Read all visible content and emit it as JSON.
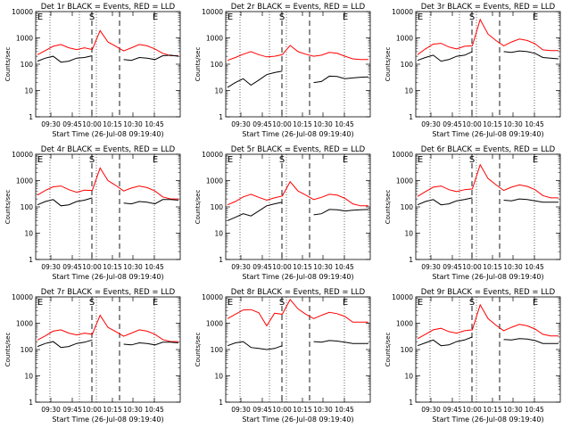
{
  "chart_data": [
    {
      "type": "line",
      "title": "Det 1r BLACK = Events, RED = LLD",
      "ylabel": "Counts/sec",
      "xlabel": "Start Time (26-Jul-08 09:19:40)",
      "x_ticks": [
        "09:30",
        "09:45",
        "10:00",
        "10:15",
        "10:30",
        "10:45"
      ],
      "y_ticks": [
        "1",
        "10",
        "100",
        "1000",
        "10000"
      ],
      "y_scale": "log",
      "ylim": [
        1,
        10000
      ],
      "grid": false,
      "markers": [
        "E",
        "S",
        "E"
      ],
      "series": [
        {
          "color": "#ff0000",
          "values": [
            230,
            330,
            480,
            560,
            420,
            360,
            420,
            360,
            1900,
            700,
            480,
            320,
            420,
            560,
            500,
            380,
            260,
            210,
            210
          ]
        },
        {
          "color": "#000000",
          "values": [
            130,
            170,
            200,
            120,
            130,
            170,
            180,
            210,
            null,
            null,
            null,
            150,
            140,
            180,
            170,
            150,
            210,
            220,
            200
          ]
        }
      ]
    },
    {
      "type": "line",
      "title": "Det 2r BLACK = Events, RED = LLD",
      "ylabel": "Counts/sec",
      "xlabel": "Start Time (26-Jul-08 09:19:40)",
      "x_ticks": [
        "09:30",
        "09:45",
        "10:00",
        "10:15",
        "10:30",
        "10:45"
      ],
      "y_ticks": [
        "1",
        "10",
        "100",
        "1000",
        "10000"
      ],
      "y_scale": "log",
      "ylim": [
        1,
        10000
      ],
      "grid": false,
      "markers": [
        "E",
        "S",
        "E"
      ],
      "series": [
        {
          "color": "#ff0000",
          "values": [
            140,
            180,
            240,
            300,
            230,
            190,
            200,
            230,
            520,
            300,
            240,
            200,
            220,
            280,
            260,
            200,
            160,
            150,
            150
          ]
        },
        {
          "color": "#000000",
          "values": [
            13,
            20,
            28,
            16,
            25,
            40,
            48,
            55,
            null,
            null,
            null,
            20,
            22,
            35,
            34,
            28,
            30,
            32,
            33
          ]
        }
      ]
    },
    {
      "type": "line",
      "title": "Det 3r BLACK = Events, RED = LLD",
      "ylabel": "Counts/sec",
      "xlabel": "Start Time (26-Jul-08 09:19:40)",
      "x_ticks": [
        "09:30",
        "09:45",
        "10:00",
        "10:15",
        "10:30",
        "10:45"
      ],
      "y_ticks": [
        "1",
        "10",
        "100",
        "1000",
        "10000"
      ],
      "y_scale": "log",
      "ylim": [
        1,
        10000
      ],
      "grid": false,
      "markers": [
        "E",
        "S",
        "E"
      ],
      "series": [
        {
          "color": "#ff0000",
          "values": [
            230,
            380,
            580,
            620,
            450,
            380,
            480,
            500,
            5000,
            1400,
            800,
            500,
            700,
            900,
            800,
            600,
            350,
            330,
            330
          ]
        },
        {
          "color": "#000000",
          "values": [
            140,
            180,
            220,
            130,
            150,
            200,
            220,
            300,
            null,
            null,
            null,
            300,
            280,
            320,
            300,
            260,
            180,
            170,
            160
          ]
        }
      ]
    },
    {
      "type": "line",
      "title": "Det 4r BLACK = Events, RED = LLD",
      "ylabel": "Counts/sec",
      "xlabel": "Start Time (26-Jul-08 09:19:40)",
      "x_ticks": [
        "09:30",
        "09:45",
        "10:00",
        "10:15",
        "10:30",
        "10:45"
      ],
      "y_ticks": [
        "1",
        "10",
        "100",
        "1000",
        "10000"
      ],
      "y_scale": "log",
      "ylim": [
        1,
        10000
      ],
      "grid": false,
      "markers": [
        "E",
        "S",
        "E"
      ],
      "series": [
        {
          "color": "#ff0000",
          "values": [
            280,
            420,
            580,
            620,
            450,
            360,
            430,
            420,
            3000,
            1000,
            650,
            400,
            520,
            620,
            540,
            400,
            240,
            200,
            200
          ]
        },
        {
          "color": "#000000",
          "values": [
            120,
            160,
            190,
            110,
            120,
            160,
            180,
            220,
            null,
            null,
            null,
            140,
            130,
            160,
            150,
            130,
            190,
            190,
            180
          ]
        }
      ]
    },
    {
      "type": "line",
      "title": "Det 5r BLACK = Events, RED = LLD",
      "ylabel": "Counts/sec",
      "xlabel": "Start Time (26-Jul-08 09:19:40)",
      "x_ticks": [
        "09:30",
        "09:45",
        "10:00",
        "10:15",
        "10:30",
        "10:45"
      ],
      "y_ticks": [
        "1",
        "10",
        "100",
        "1000",
        "10000"
      ],
      "y_scale": "log",
      "ylim": [
        1,
        10000
      ],
      "grid": false,
      "markers": [
        "E",
        "S",
        "E"
      ],
      "series": [
        {
          "color": "#ff0000",
          "values": [
            120,
            160,
            240,
            300,
            230,
            180,
            220,
            260,
            900,
            400,
            280,
            190,
            230,
            300,
            280,
            210,
            130,
            110,
            110
          ]
        },
        {
          "color": "#000000",
          "values": [
            30,
            40,
            55,
            45,
            70,
            110,
            130,
            150,
            null,
            null,
            null,
            50,
            55,
            80,
            78,
            70,
            75,
            78,
            80
          ]
        }
      ]
    },
    {
      "type": "line",
      "title": "Det 6r BLACK = Events, RED = LLD",
      "ylabel": "Counts/sec",
      "xlabel": "Start Time (26-Jul-08 09:19:40)",
      "x_ticks": [
        "09:30",
        "09:45",
        "10:00",
        "10:15",
        "10:30",
        "10:45"
      ],
      "y_ticks": [
        "1",
        "10",
        "100",
        "1000",
        "10000"
      ],
      "y_scale": "log",
      "ylim": [
        1,
        10000
      ],
      "grid": false,
      "markers": [
        "E",
        "S",
        "E"
      ],
      "series": [
        {
          "color": "#ff0000",
          "values": [
            250,
            380,
            560,
            620,
            450,
            380,
            450,
            480,
            4000,
            1200,
            700,
            420,
            560,
            680,
            600,
            450,
            270,
            220,
            220
          ]
        },
        {
          "color": "#000000",
          "values": [
            120,
            160,
            190,
            120,
            130,
            170,
            190,
            220,
            null,
            null,
            null,
            180,
            170,
            200,
            190,
            170,
            150,
            150,
            150
          ]
        }
      ]
    },
    {
      "type": "line",
      "title": "Det 7r BLACK = Events, RED = LLD",
      "ylabel": "Counts/sec",
      "xlabel": "Start Time (26-Jul-08 09:19:40)",
      "x_ticks": [
        "09:30",
        "09:45",
        "10:00",
        "10:15",
        "10:30",
        "10:45"
      ],
      "y_ticks": [
        "1",
        "10",
        "100",
        "1000",
        "10000"
      ],
      "y_scale": "log",
      "ylim": [
        1,
        10000
      ],
      "grid": false,
      "markers": [
        "E",
        "S",
        "E"
      ],
      "series": [
        {
          "color": "#ff0000",
          "values": [
            230,
            330,
            500,
            560,
            420,
            360,
            420,
            380,
            2000,
            700,
            480,
            320,
            420,
            560,
            500,
            380,
            240,
            200,
            200
          ]
        },
        {
          "color": "#000000",
          "values": [
            130,
            170,
            200,
            120,
            130,
            170,
            190,
            230,
            null,
            null,
            null,
            160,
            150,
            180,
            170,
            150,
            190,
            190,
            180
          ]
        }
      ]
    },
    {
      "type": "line",
      "title": "Det 8r BLACK = Events, RED = LLD",
      "ylabel": "Counts/sec",
      "xlabel": "Start Time (26-Jul-08 09:19:40)",
      "x_ticks": [
        "09:30",
        "09:45",
        "10:00",
        "10:15",
        "10:30",
        "10:45"
      ],
      "y_ticks": [
        "1",
        "10",
        "100",
        "1000",
        "10000"
      ],
      "y_scale": "log",
      "ylim": [
        1,
        10000
      ],
      "grid": false,
      "markers": [
        "E",
        "S",
        "E"
      ],
      "series": [
        {
          "color": "#ff0000",
          "values": [
            1500,
            2200,
            3200,
            3300,
            2500,
            800,
            2400,
            2200,
            8000,
            3500,
            2200,
            1500,
            2000,
            2600,
            2300,
            1800,
            1100,
            1100,
            1100
          ]
        },
        {
          "color": "#000000",
          "values": [
            140,
            180,
            200,
            120,
            110,
            100,
            110,
            140,
            null,
            null,
            null,
            200,
            190,
            220,
            210,
            190,
            170,
            170,
            170
          ]
        }
      ]
    },
    {
      "type": "line",
      "title": "Det 9r BLACK = Events, RED = LLD",
      "ylabel": "Counts/sec",
      "xlabel": "Start Time (26-Jul-08 09:19:40)",
      "x_ticks": [
        "09:30",
        "09:45",
        "10:00",
        "10:15",
        "10:30",
        "10:45"
      ],
      "y_ticks": [
        "1",
        "10",
        "100",
        "1000",
        "10000"
      ],
      "y_scale": "log",
      "ylim": [
        1,
        10000
      ],
      "grid": false,
      "markers": [
        "E",
        "S",
        "E"
      ],
      "series": [
        {
          "color": "#ff0000",
          "values": [
            260,
            380,
            560,
            640,
            480,
            420,
            520,
            560,
            5000,
            1500,
            850,
            520,
            700,
            900,
            800,
            600,
            380,
            330,
            330
          ]
        },
        {
          "color": "#000000",
          "values": [
            140,
            180,
            230,
            140,
            150,
            200,
            230,
            300,
            null,
            null,
            null,
            240,
            230,
            260,
            250,
            220,
            170,
            170,
            170
          ]
        }
      ]
    }
  ]
}
